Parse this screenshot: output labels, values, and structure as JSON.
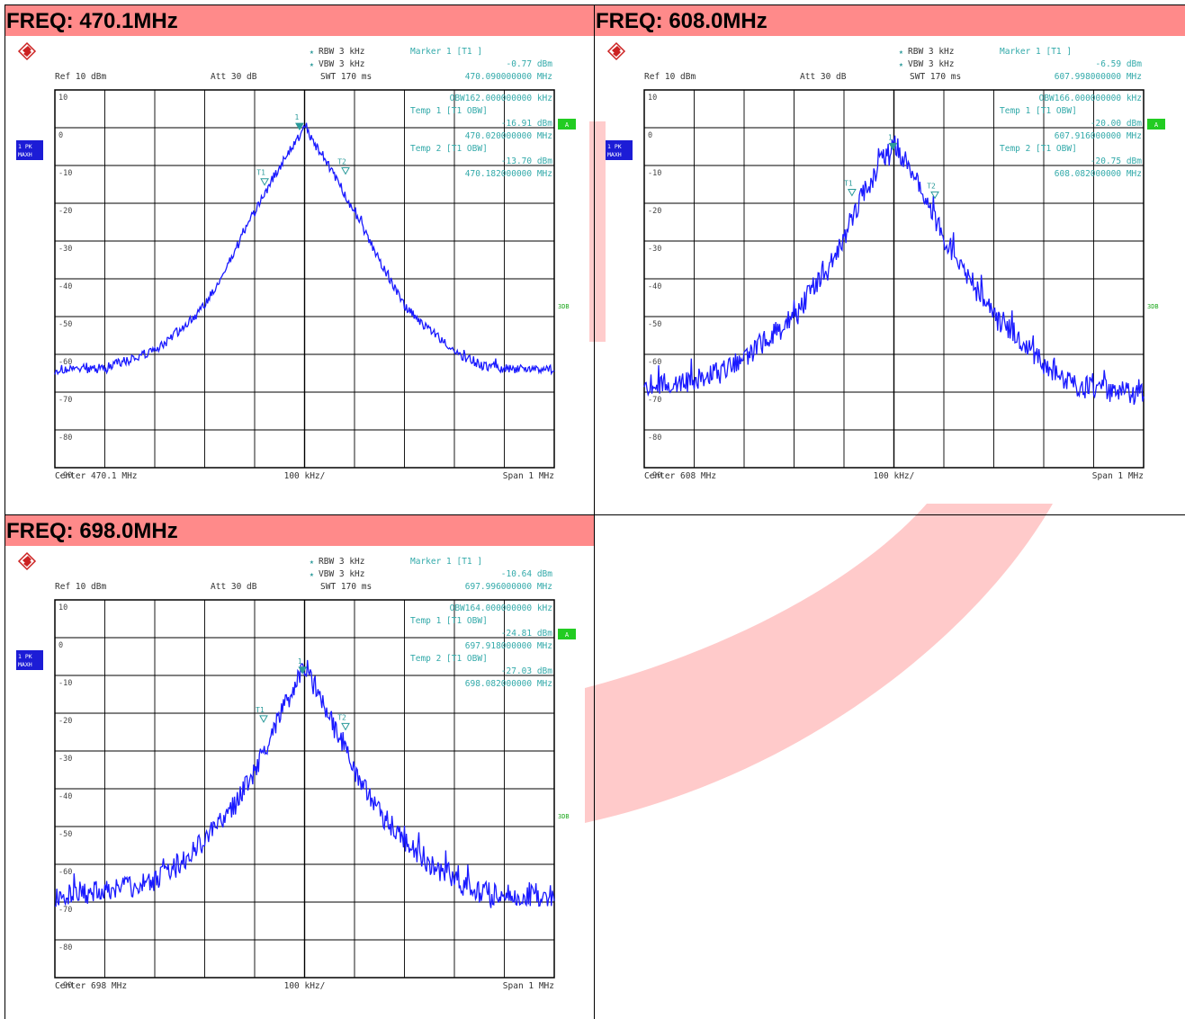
{
  "colors": {
    "header_bg": "#ff8a8a",
    "trace": "#1a1aff",
    "annotation": "#33aaaa",
    "side_label_bg": "#1c1cd6",
    "marker_a_bg": "#22cc22",
    "grid": "#000000",
    "watermark": "#ffb3b3"
  },
  "panels": [
    {
      "title": "FREQ: 470.1MHz",
      "rbw": "RBW 3 kHz",
      "vbw": "VBW 3 kHz",
      "marker_label": "Marker 1 [T1 ]",
      "marker_level": "-0.77 dBm",
      "marker_freq": "470.090000000 MHz",
      "ref": "Ref  10 dBm",
      "att": "Att  30 dB",
      "swt": "SWT 170 ms",
      "obw": "OBW162.000000000 kHz",
      "temp1": "Temp 1 [T1 OBW]",
      "temp1_level": "-16.91 dBm",
      "temp1_freq": "470.020000000 MHz",
      "temp2": "Temp 2 [T1 OBW]",
      "temp2_level": "-13.70 dBm",
      "temp2_freq": "470.182000000 MHz",
      "center": "Center 470.1 MHz",
      "div": "100 kHz/",
      "span": "Span 1 MHz",
      "side1": "1 PK",
      "side2": "MAXH",
      "marker_a": "A",
      "db3": "3DB",
      "m1": "1",
      "t1": "T1",
      "t2": "T2"
    },
    {
      "title": "FREQ: 608.0MHz",
      "rbw": "RBW 3 kHz",
      "vbw": "VBW 3 kHz",
      "marker_label": "Marker 1 [T1 ]",
      "marker_level": "-6.59 dBm",
      "marker_freq": "607.998000000 MHz",
      "ref": "Ref  10 dBm",
      "att": "Att  30 dB",
      "swt": "SWT 170 ms",
      "obw": "OBW166.000000000 kHz",
      "temp1": "Temp 1 [T1 OBW]",
      "temp1_level": "-20.00 dBm",
      "temp1_freq": "607.916000000 MHz",
      "temp2": "Temp 2 [T1 OBW]",
      "temp2_level": "-20.75 dBm",
      "temp2_freq": "608.082000000 MHz",
      "center": "Center 608 MHz",
      "div": "100 kHz/",
      "span": "Span 1 MHz",
      "side1": "1 PK",
      "side2": "MAXH",
      "marker_a": "A",
      "db3": "3DB",
      "m1": "1",
      "t1": "T1",
      "t2": "T2"
    },
    {
      "title": "FREQ: 698.0MHz",
      "rbw": "RBW 3 kHz",
      "vbw": "VBW 3 kHz",
      "marker_label": "Marker 1 [T1 ]",
      "marker_level": "-10.64 dBm",
      "marker_freq": "697.996000000 MHz",
      "ref": "Ref  10 dBm",
      "att": "Att  30 dB",
      "swt": "SWT 170 ms",
      "obw": "OBW164.000000000 kHz",
      "temp1": "Temp 1 [T1 OBW]",
      "temp1_level": "-24.81 dBm",
      "temp1_freq": "697.918000000 MHz",
      "temp2": "Temp 2 [T1 OBW]",
      "temp2_level": "-27.03 dBm",
      "temp2_freq": "698.082000000 MHz",
      "center": "Center 698 MHz",
      "div": "100 kHz/",
      "span": "Span 1 MHz",
      "side1": "1 PK",
      "side2": "MAXH",
      "marker_a": "A",
      "db3": "3DB",
      "m1": "1",
      "t1": "T1",
      "t2": "T2"
    }
  ],
  "chart_data": [
    {
      "type": "line",
      "xlabel": "",
      "ylabel": "",
      "xlim": [
        -500,
        500
      ],
      "ylim": [
        -100,
        10
      ],
      "yticks": [
        10,
        0,
        -10,
        -20,
        -30,
        -40,
        -50,
        -60,
        -70,
        -80,
        -90
      ],
      "grid": true,
      "peak_offset_khz": 0,
      "peak_db": -0.77,
      "floor_db": -71,
      "series": [
        {
          "x": [
            -500,
            -400,
            -300,
            -250,
            -200,
            -150,
            -120,
            -80,
            -40,
            0,
            40,
            80,
            120,
            150,
            200,
            250,
            300,
            350,
            400,
            500
          ],
          "values": [
            -71.5,
            -71,
            -66,
            -60,
            -53,
            -40,
            -31,
            -20,
            -10,
            -1,
            -10,
            -20,
            -31,
            -40,
            -53,
            -60,
            -66,
            -70,
            -71,
            -71.5
          ]
        }
      ],
      "markers": [
        {
          "label": "1",
          "x": -10,
          "y": -0.77
        },
        {
          "label": "T1",
          "x": -80,
          "y": -16.91
        },
        {
          "label": "T2",
          "x": 82,
          "y": -13.7
        }
      ]
    },
    {
      "type": "line",
      "xlabel": "",
      "ylabel": "",
      "xlim": [
        -500,
        500
      ],
      "ylim": [
        -100,
        10
      ],
      "yticks": [
        10,
        0,
        -10,
        -20,
        -30,
        -40,
        -50,
        -60,
        -70,
        -80,
        -90
      ],
      "grid": true,
      "peak_offset_khz": 0,
      "peak_db": -3,
      "floor_db": -77,
      "series": [
        {
          "x": [
            -500,
            -400,
            -300,
            -250,
            -200,
            -150,
            -100,
            -60,
            -20,
            0,
            20,
            60,
            100,
            150,
            200,
            250,
            300,
            350,
            400,
            500
          ],
          "values": [
            -76,
            -75,
            -68,
            -62,
            -56,
            -45,
            -33,
            -20,
            -10,
            -5,
            -10,
            -20,
            -33,
            -45,
            -56,
            -62,
            -70,
            -75,
            -77,
            -79
          ]
        }
      ],
      "markers": [
        {
          "label": "1",
          "x": -2,
          "y": -6.59
        },
        {
          "label": "T1",
          "x": -84,
          "y": -20.0
        },
        {
          "label": "T2",
          "x": 82,
          "y": -20.75
        }
      ]
    },
    {
      "type": "line",
      "xlabel": "",
      "ylabel": "",
      "xlim": [
        -500,
        500
      ],
      "ylim": [
        -100,
        10
      ],
      "yticks": [
        10,
        0,
        -10,
        -20,
        -30,
        -40,
        -50,
        -60,
        -70,
        -80,
        -90
      ],
      "grid": true,
      "peak_offset_khz": 0,
      "peak_db": -10,
      "floor_db": -76,
      "series": [
        {
          "x": [
            -500,
            -400,
            -300,
            -250,
            -200,
            -150,
            -100,
            -60,
            -20,
            0,
            20,
            60,
            100,
            150,
            200,
            250,
            300,
            350,
            400,
            500
          ],
          "values": [
            -76,
            -75,
            -72,
            -67,
            -60,
            -52,
            -40,
            -27,
            -15,
            -10,
            -15,
            -27,
            -40,
            -52,
            -60,
            -67,
            -72,
            -75,
            -76,
            -76
          ]
        }
      ],
      "markers": [
        {
          "label": "1",
          "x": -4,
          "y": -10.64
        },
        {
          "label": "T1",
          "x": -82,
          "y": -24.81
        },
        {
          "label": "T2",
          "x": 82,
          "y": -27.03
        }
      ]
    }
  ]
}
